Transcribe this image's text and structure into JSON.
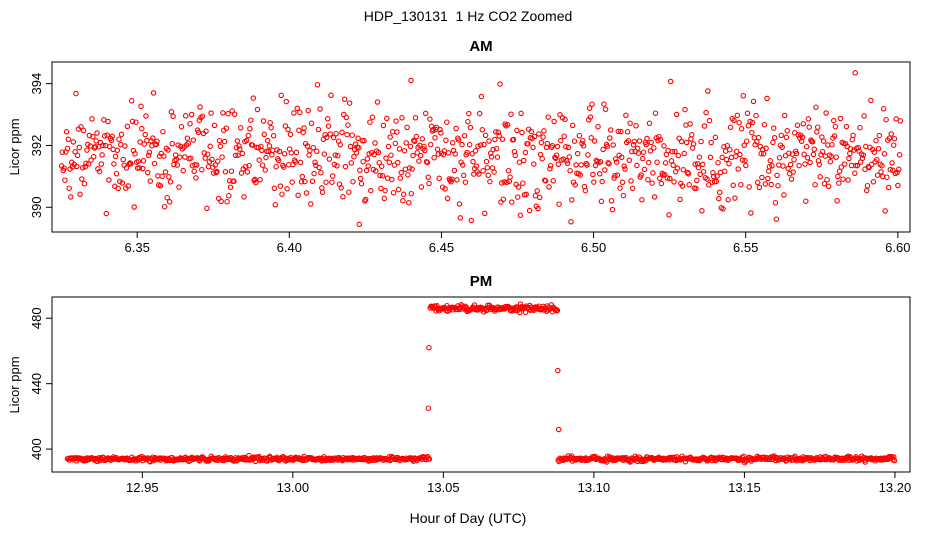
{
  "figure": {
    "title": "HDP_130131  1 Hz CO2 Zoomed",
    "xlabel": "Hour of Day (UTC)",
    "point_color": "#FF0000"
  },
  "chart_data": [
    {
      "type": "scatter",
      "panel": "am",
      "title": "AM",
      "ylabel": "Licor ppm",
      "marker": "open-circle",
      "grid": false,
      "xlim": [
        6.322,
        6.604
      ],
      "ylim": [
        389.2,
        394.7
      ],
      "xticks": [
        6.35,
        6.4,
        6.45,
        6.5,
        6.55,
        6.6
      ],
      "xtick_labels": [
        "6.35",
        "6.40",
        "6.45",
        "6.50",
        "6.55",
        "6.60"
      ],
      "yticks": [
        390,
        392,
        394
      ],
      "ytick_labels": [
        "390",
        "392",
        "394"
      ],
      "sample_rate_points_per_hour": 3600,
      "segments": [
        {
          "name": "co2_am_noise",
          "x_start": 6.325,
          "x_end": 6.601,
          "mean": 391.7,
          "sd": 0.8,
          "y_min": 389.4,
          "y_max": 394.45
        }
      ],
      "extra_points": [
        [
          6.586,
          394.35
        ],
        [
          6.423,
          389.45
        ],
        [
          6.44,
          394.1
        ]
      ]
    },
    {
      "type": "scatter",
      "panel": "pm",
      "title": "PM",
      "ylabel": "Licor ppm",
      "marker": "open-circle",
      "grid": false,
      "xlim": [
        12.92,
        13.205
      ],
      "ylim": [
        386,
        493
      ],
      "xticks": [
        12.95,
        13.0,
        13.05,
        13.1,
        13.15,
        13.2
      ],
      "xtick_labels": [
        "12.95",
        "13.00",
        "13.05",
        "13.10",
        "13.15",
        "13.20"
      ],
      "yticks": [
        400,
        440,
        480
      ],
      "ytick_labels": [
        "400",
        "440",
        "480"
      ],
      "sample_rate_points_per_hour": 3600,
      "segments": [
        {
          "name": "co2_pm_baseline_1",
          "x_start": 12.925,
          "x_end": 13.0455,
          "mean": 394.0,
          "sd": 0.7,
          "y_min": 391.5,
          "y_max": 396.5
        },
        {
          "name": "co2_pm_calibration_plateau",
          "x_start": 13.0455,
          "x_end": 13.088,
          "mean": 486.0,
          "sd": 1.0,
          "y_min": 483.0,
          "y_max": 489.5
        },
        {
          "name": "co2_pm_baseline_2",
          "x_start": 13.088,
          "x_end": 13.2,
          "mean": 394.0,
          "sd": 0.7,
          "y_min": 391.5,
          "y_max": 396.5
        }
      ],
      "extra_points": [
        [
          13.045,
          425.0
        ],
        [
          13.0452,
          462.0
        ],
        [
          13.088,
          448.0
        ],
        [
          13.0883,
          412.0
        ]
      ]
    }
  ]
}
